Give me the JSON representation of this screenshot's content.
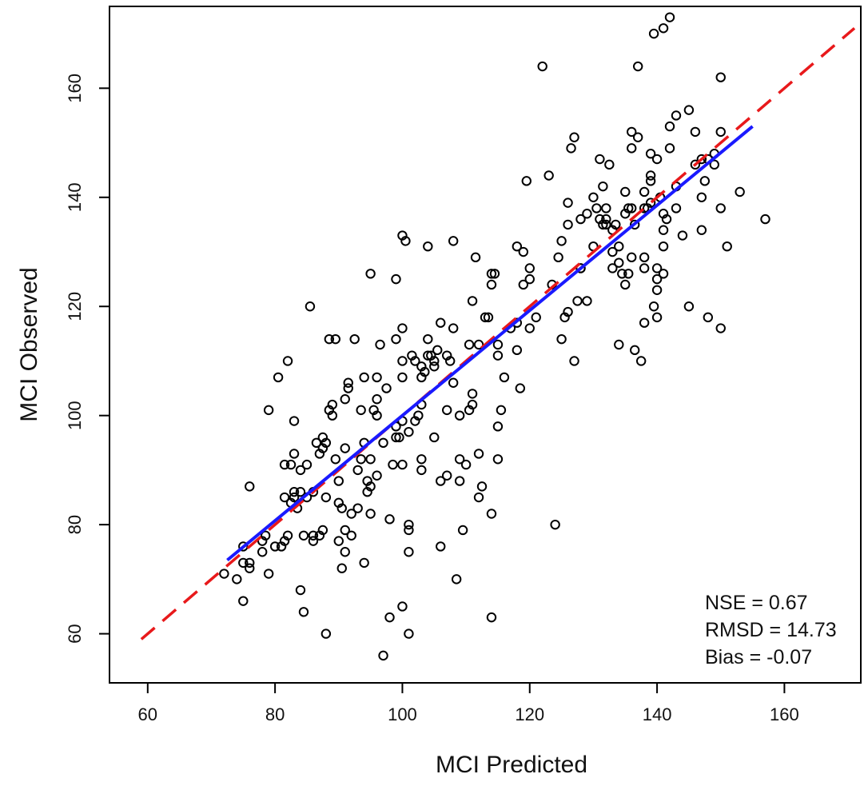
{
  "chart_data": {
    "type": "scatter",
    "xlabel": "MCI Predicted",
    "ylabel": "MCI Observed",
    "xlim": [
      54,
      172
    ],
    "ylim": [
      51,
      175
    ],
    "xticks": [
      60,
      80,
      100,
      120,
      140,
      160
    ],
    "yticks": [
      60,
      80,
      100,
      120,
      140,
      160
    ],
    "grid": false,
    "annotations": [
      "NSE =  0.67",
      "RMSD = 14.73",
      "Bias = -0.07"
    ],
    "reference_line": {
      "style": "dashed",
      "color": "#e8191b",
      "x": [
        59,
        171
      ],
      "y": [
        59,
        171
      ]
    },
    "fit_line": {
      "style": "solid",
      "color": "#1a1aff",
      "x": [
        72.5,
        155
      ],
      "y": [
        73.5,
        153
      ]
    },
    "points": [
      [
        72,
        71
      ],
      [
        74,
        70
      ],
      [
        75,
        73
      ],
      [
        76,
        73
      ],
      [
        75,
        76
      ],
      [
        76,
        72
      ],
      [
        75,
        66
      ],
      [
        76,
        87
      ],
      [
        78,
        75
      ],
      [
        78,
        77
      ],
      [
        78.5,
        78
      ],
      [
        79,
        71
      ],
      [
        79,
        101
      ],
      [
        80,
        76
      ],
      [
        80.5,
        107
      ],
      [
        81,
        76
      ],
      [
        81.5,
        77
      ],
      [
        81.5,
        85
      ],
      [
        81.5,
        91
      ],
      [
        82,
        78
      ],
      [
        82,
        110
      ],
      [
        82.5,
        84
      ],
      [
        82.5,
        91
      ],
      [
        83,
        85
      ],
      [
        83,
        93
      ],
      [
        83,
        99
      ],
      [
        83,
        86
      ],
      [
        83.5,
        83
      ],
      [
        84,
        90
      ],
      [
        84,
        68
      ],
      [
        84,
        86
      ],
      [
        84.5,
        78
      ],
      [
        84.5,
        64
      ],
      [
        85,
        85
      ],
      [
        85,
        91
      ],
      [
        85.5,
        120
      ],
      [
        86,
        86
      ],
      [
        86,
        78
      ],
      [
        86,
        77
      ],
      [
        86.5,
        95
      ],
      [
        87,
        93
      ],
      [
        87,
        78
      ],
      [
        87.5,
        79
      ],
      [
        87.5,
        94
      ],
      [
        87.5,
        96
      ],
      [
        88,
        95
      ],
      [
        88,
        85
      ],
      [
        88,
        60
      ],
      [
        88.5,
        101
      ],
      [
        88.5,
        114
      ],
      [
        89,
        100
      ],
      [
        89,
        102
      ],
      [
        89.5,
        92
      ],
      [
        89.5,
        114
      ],
      [
        90,
        88
      ],
      [
        90,
        84
      ],
      [
        90,
        77
      ],
      [
        90.5,
        72
      ],
      [
        90.5,
        83
      ],
      [
        91,
        75
      ],
      [
        91,
        79
      ],
      [
        91,
        94
      ],
      [
        91,
        103
      ],
      [
        91.5,
        105
      ],
      [
        91.5,
        106
      ],
      [
        92,
        78
      ],
      [
        92,
        82
      ],
      [
        92.5,
        114
      ],
      [
        93,
        83
      ],
      [
        93,
        90
      ],
      [
        93.5,
        92
      ],
      [
        93.5,
        101
      ],
      [
        94,
        95
      ],
      [
        94,
        107
      ],
      [
        94,
        73
      ],
      [
        94.5,
        86
      ],
      [
        94.5,
        88
      ],
      [
        95,
        82
      ],
      [
        95,
        92
      ],
      [
        95,
        87
      ],
      [
        95,
        126
      ],
      [
        95.5,
        101
      ],
      [
        96,
        100
      ],
      [
        96,
        103
      ],
      [
        96,
        89
      ],
      [
        96,
        107
      ],
      [
        96.5,
        113
      ],
      [
        97,
        95
      ],
      [
        97,
        56
      ],
      [
        97.5,
        105
      ],
      [
        98,
        63
      ],
      [
        98,
        81
      ],
      [
        98.5,
        91
      ],
      [
        99,
        114
      ],
      [
        99,
        96
      ],
      [
        99,
        98
      ],
      [
        99,
        125
      ],
      [
        99.5,
        96
      ],
      [
        100,
        99
      ],
      [
        100,
        91
      ],
      [
        100,
        65
      ],
      [
        100,
        107
      ],
      [
        100,
        110
      ],
      [
        100,
        116
      ],
      [
        100,
        133
      ],
      [
        100.5,
        132
      ],
      [
        101,
        97
      ],
      [
        101,
        75
      ],
      [
        101,
        80
      ],
      [
        101,
        79
      ],
      [
        101,
        60
      ],
      [
        101.5,
        111
      ],
      [
        102,
        99
      ],
      [
        102,
        110
      ],
      [
        102.5,
        100
      ],
      [
        103,
        109
      ],
      [
        103,
        102
      ],
      [
        103,
        90
      ],
      [
        103,
        92
      ],
      [
        103,
        107
      ],
      [
        103.5,
        108
      ],
      [
        104,
        111
      ],
      [
        104,
        114
      ],
      [
        104,
        131
      ],
      [
        104.5,
        111
      ],
      [
        105,
        110
      ],
      [
        105,
        109
      ],
      [
        105,
        96
      ],
      [
        105.5,
        112
      ],
      [
        106,
        76
      ],
      [
        106,
        88
      ],
      [
        106,
        117
      ],
      [
        107,
        101
      ],
      [
        107,
        89
      ],
      [
        107,
        111
      ],
      [
        107.5,
        110
      ],
      [
        108,
        106
      ],
      [
        108,
        116
      ],
      [
        108,
        132
      ],
      [
        108.5,
        70
      ],
      [
        109,
        100
      ],
      [
        109,
        88
      ],
      [
        109,
        92
      ],
      [
        109.5,
        79
      ],
      [
        110,
        91
      ],
      [
        110.5,
        101
      ],
      [
        110.5,
        113
      ],
      [
        111,
        102
      ],
      [
        111,
        104
      ],
      [
        111,
        121
      ],
      [
        111.5,
        129
      ],
      [
        112,
        93
      ],
      [
        112,
        85
      ],
      [
        112,
        113
      ],
      [
        112.5,
        87
      ],
      [
        113,
        118
      ],
      [
        113.5,
        118
      ],
      [
        114,
        63
      ],
      [
        114,
        82
      ],
      [
        114,
        124
      ],
      [
        114,
        126
      ],
      [
        114.5,
        126
      ],
      [
        115,
        111
      ],
      [
        115,
        113
      ],
      [
        115,
        92
      ],
      [
        115,
        98
      ],
      [
        115.5,
        101
      ],
      [
        116,
        107
      ],
      [
        117,
        116
      ],
      [
        118,
        112
      ],
      [
        118,
        117
      ],
      [
        118,
        131
      ],
      [
        118.5,
        105
      ],
      [
        119,
        130
      ],
      [
        119,
        124
      ],
      [
        119.5,
        143
      ],
      [
        120,
        125
      ],
      [
        120,
        127
      ],
      [
        120,
        116
      ],
      [
        121,
        118
      ],
      [
        122,
        164
      ],
      [
        123,
        144
      ],
      [
        123.5,
        124
      ],
      [
        124,
        80
      ],
      [
        124.5,
        129
      ],
      [
        125,
        132
      ],
      [
        125,
        114
      ],
      [
        125.5,
        118
      ],
      [
        126,
        135
      ],
      [
        126,
        119
      ],
      [
        126,
        139
      ],
      [
        126.5,
        149
      ],
      [
        127,
        151
      ],
      [
        127,
        110
      ],
      [
        127.5,
        121
      ],
      [
        128,
        127
      ],
      [
        128,
        127
      ],
      [
        128,
        136
      ],
      [
        129,
        137
      ],
      [
        129,
        121
      ],
      [
        130,
        140
      ],
      [
        130,
        131
      ],
      [
        130.5,
        138
      ],
      [
        131,
        136
      ],
      [
        131,
        147
      ],
      [
        131.5,
        142
      ],
      [
        131.5,
        135
      ],
      [
        132,
        135
      ],
      [
        132,
        136
      ],
      [
        132,
        138
      ],
      [
        132.5,
        146
      ],
      [
        133,
        130
      ],
      [
        133,
        134
      ],
      [
        133,
        127
      ],
      [
        133.5,
        135
      ],
      [
        134,
        128
      ],
      [
        134,
        113
      ],
      [
        134,
        131
      ],
      [
        134.5,
        126
      ],
      [
        135,
        137
      ],
      [
        135,
        141
      ],
      [
        135,
        124
      ],
      [
        135.5,
        138
      ],
      [
        135.5,
        126
      ],
      [
        136,
        149
      ],
      [
        136,
        138
      ],
      [
        136,
        152
      ],
      [
        136,
        129
      ],
      [
        136.5,
        135
      ],
      [
        136.5,
        112
      ],
      [
        137,
        164
      ],
      [
        137,
        151
      ],
      [
        137.5,
        110
      ],
      [
        138,
        141
      ],
      [
        138,
        129
      ],
      [
        138,
        117
      ],
      [
        138,
        127
      ],
      [
        138,
        138
      ],
      [
        138.5,
        138
      ],
      [
        139,
        139
      ],
      [
        139,
        144
      ],
      [
        139,
        148
      ],
      [
        139,
        143
      ],
      [
        139.5,
        120
      ],
      [
        139.5,
        170
      ],
      [
        140,
        123
      ],
      [
        140,
        127
      ],
      [
        140,
        125
      ],
      [
        140,
        118
      ],
      [
        140,
        147
      ],
      [
        140.5,
        140
      ],
      [
        141,
        126
      ],
      [
        141,
        134
      ],
      [
        141,
        131
      ],
      [
        141,
        137
      ],
      [
        141,
        171
      ],
      [
        141.5,
        136
      ],
      [
        142,
        173
      ],
      [
        142,
        149
      ],
      [
        142,
        153
      ],
      [
        143,
        138
      ],
      [
        143,
        142
      ],
      [
        143,
        155
      ],
      [
        144,
        133
      ],
      [
        145,
        120
      ],
      [
        145,
        156
      ],
      [
        146,
        146
      ],
      [
        146,
        152
      ],
      [
        147,
        140
      ],
      [
        147,
        134
      ],
      [
        147,
        147
      ],
      [
        147.5,
        143
      ],
      [
        148,
        118
      ],
      [
        148,
        147
      ],
      [
        149,
        148
      ],
      [
        149,
        146
      ],
      [
        150,
        138
      ],
      [
        150,
        152
      ],
      [
        150,
        162
      ],
      [
        150,
        116
      ],
      [
        151,
        131
      ],
      [
        153,
        141
      ],
      [
        157,
        136
      ]
    ]
  }
}
